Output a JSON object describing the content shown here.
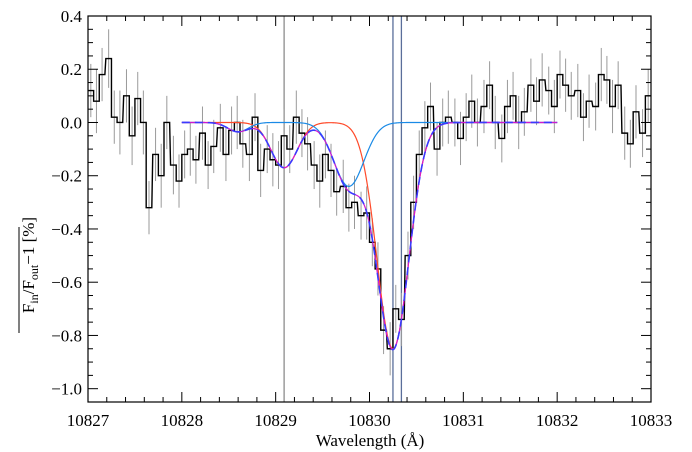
{
  "chart_data": {
    "type": "line",
    "xlabel": "Wavelength (Å)",
    "ylabel": "F_in/F_out − 1 [%]",
    "ylabel_parts": {
      "f1": "F",
      "s1": "in",
      "slash": "/F",
      "s2": "out",
      "rest": "−1 [%]"
    },
    "xlim": [
      10827,
      10833
    ],
    "ylim": [
      -1.05,
      0.4
    ],
    "xticks": [
      10827,
      10828,
      10829,
      10830,
      10831,
      10832,
      10833
    ],
    "xtick_labels": [
      "10827",
      "10828",
      "10829",
      "10830",
      "10831",
      "10832",
      "10833"
    ],
    "yticks": [
      -1.0,
      -0.8,
      -0.6,
      -0.4,
      -0.2,
      0.0,
      0.2,
      0.4
    ],
    "ytick_labels": [
      "−1.0",
      "−0.8",
      "−0.6",
      "−0.4",
      "−0.2",
      "0.0",
      "0.2",
      "0.4"
    ],
    "grid": false,
    "vertical_lines": [
      {
        "x": 10829.09,
        "color": "#8c8c8c"
      },
      {
        "x": 10830.25,
        "color": "#5a6e9a"
      },
      {
        "x": 10830.34,
        "color": "#5a6e9a"
      }
    ],
    "observed_spectrum": {
      "style": "step",
      "color": "#000000",
      "x": [
        10827.0,
        10827.06,
        10827.12,
        10827.19,
        10827.25,
        10827.31,
        10827.38,
        10827.44,
        10827.5,
        10827.56,
        10827.62,
        10827.69,
        10827.75,
        10827.81,
        10827.88,
        10827.94,
        10828.0,
        10828.06,
        10828.12,
        10828.19,
        10828.25,
        10828.31,
        10828.38,
        10828.44,
        10828.5,
        10828.56,
        10828.62,
        10828.69,
        10828.75,
        10828.81,
        10828.88,
        10828.94,
        10829.0,
        10829.06,
        10829.12,
        10829.19,
        10829.25,
        10829.31,
        10829.38,
        10829.44,
        10829.5,
        10829.56,
        10829.62,
        10829.69,
        10829.75,
        10829.81,
        10829.88,
        10829.94,
        10830.0,
        10830.06,
        10830.12,
        10830.19,
        10830.25,
        10830.31,
        10830.38,
        10830.44,
        10830.5,
        10830.56,
        10830.62,
        10830.69,
        10830.75,
        10830.81,
        10830.88,
        10830.94,
        10831.0,
        10831.06,
        10831.12,
        10831.19,
        10831.25,
        10831.31,
        10831.38,
        10831.44,
        10831.5,
        10831.56,
        10831.62,
        10831.69,
        10831.75,
        10831.81,
        10831.88,
        10831.94,
        10832.0,
        10832.06,
        10832.12,
        10832.19,
        10832.25,
        10832.31,
        10832.38,
        10832.44,
        10832.5,
        10832.56,
        10832.62,
        10832.69,
        10832.75,
        10832.81,
        10832.88,
        10832.94
      ],
      "y": [
        0.12,
        0.08,
        0.18,
        0.24,
        0.02,
        0.0,
        0.1,
        -0.05,
        0.09,
        0.0,
        -0.32,
        -0.12,
        -0.2,
        0.0,
        -0.16,
        -0.22,
        -0.12,
        -0.1,
        -0.14,
        -0.04,
        -0.16,
        -0.09,
        -0.02,
        -0.12,
        -0.03,
        0.0,
        -0.08,
        -0.12,
        0.02,
        -0.18,
        -0.1,
        -0.14,
        -0.16,
        -0.05,
        -0.1,
        0.02,
        -0.04,
        -0.08,
        -0.16,
        -0.22,
        -0.12,
        -0.18,
        -0.26,
        -0.24,
        -0.32,
        -0.3,
        -0.35,
        -0.34,
        -0.45,
        -0.55,
        -0.78,
        -0.85,
        -0.7,
        -0.74,
        -0.5,
        -0.3,
        -0.12,
        -0.02,
        0.06,
        -0.1,
        0.0,
        0.02,
        0.0,
        -0.06,
        0.02,
        0.08,
        0.0,
        0.06,
        0.14,
        0.0,
        -0.06,
        0.06,
        0.1,
        0.0,
        0.04,
        0.14,
        0.08,
        0.16,
        0.12,
        0.06,
        0.18,
        0.14,
        0.1,
        0.12,
        0.02,
        0.08,
        0.06,
        0.18,
        0.16,
        0.06,
        0.14,
        -0.04,
        -0.08,
        0.04,
        -0.04,
        0.1
      ],
      "err": [
        0.1,
        0.12,
        0.1,
        0.11,
        0.1,
        0.12,
        0.1,
        0.11,
        0.1,
        0.12,
        0.1,
        0.1,
        0.12,
        0.1,
        0.11,
        0.1,
        0.09,
        0.1,
        0.09,
        0.1,
        0.09,
        0.1,
        0.09,
        0.1,
        0.09,
        0.1,
        0.09,
        0.1,
        0.09,
        0.1,
        0.09,
        0.1,
        0.09,
        0.1,
        0.09,
        0.1,
        0.09,
        0.1,
        0.09,
        0.1,
        0.09,
        0.1,
        0.09,
        0.1,
        0.09,
        0.1,
        0.09,
        0.1,
        0.09,
        0.1,
        0.09,
        0.1,
        0.09,
        0.1,
        0.09,
        0.1,
        0.09,
        0.1,
        0.09,
        0.1,
        0.09,
        0.1,
        0.09,
        0.1,
        0.09,
        0.1,
        0.09,
        0.1,
        0.09,
        0.1,
        0.09,
        0.1,
        0.09,
        0.1,
        0.09,
        0.1,
        0.09,
        0.1,
        0.09,
        0.1,
        0.09,
        0.1,
        0.09,
        0.1,
        0.09,
        0.1,
        0.09,
        0.1,
        0.09,
        0.1,
        0.09,
        0.1,
        0.09,
        0.1,
        0.09,
        0.1
      ]
    },
    "model_curves": [
      {
        "color": "#ff4a2a",
        "dashed": false,
        "x_range": [
          10828.0,
          10832.0
        ],
        "components": [
          {
            "center": 10829.09,
            "depth": 0.17,
            "sigma": 0.14
          },
          {
            "center": 10830.25,
            "depth": 0.85,
            "sigma": 0.17
          }
        ]
      },
      {
        "color": "#1a8ae6",
        "dashed": false,
        "x_range": [
          10828.0,
          10832.0
        ],
        "components": [
          {
            "center": 10828.6,
            "depth": 0.035,
            "sigma": 0.11
          },
          {
            "center": 10829.78,
            "depth": 0.24,
            "sigma": 0.16
          }
        ]
      },
      {
        "color": "#d01ad0",
        "dashed": false,
        "x_range": [
          10828.0,
          10832.0
        ],
        "components": [
          {
            "center": 10828.6,
            "depth": 0.035,
            "sigma": 0.11
          },
          {
            "center": 10829.09,
            "depth": 0.17,
            "sigma": 0.14
          },
          {
            "center": 10829.78,
            "depth": 0.24,
            "sigma": 0.16
          },
          {
            "center": 10830.25,
            "depth": 0.85,
            "sigma": 0.17
          }
        ]
      },
      {
        "color": "#3a3aff",
        "dashed": true,
        "x_range": [
          10828.0,
          10832.0
        ],
        "components": [
          {
            "center": 10828.6,
            "depth": 0.035,
            "sigma": 0.11
          },
          {
            "center": 10829.09,
            "depth": 0.17,
            "sigma": 0.14
          },
          {
            "center": 10829.78,
            "depth": 0.24,
            "sigma": 0.16
          },
          {
            "center": 10830.25,
            "depth": 0.85,
            "sigma": 0.17
          }
        ]
      }
    ]
  }
}
